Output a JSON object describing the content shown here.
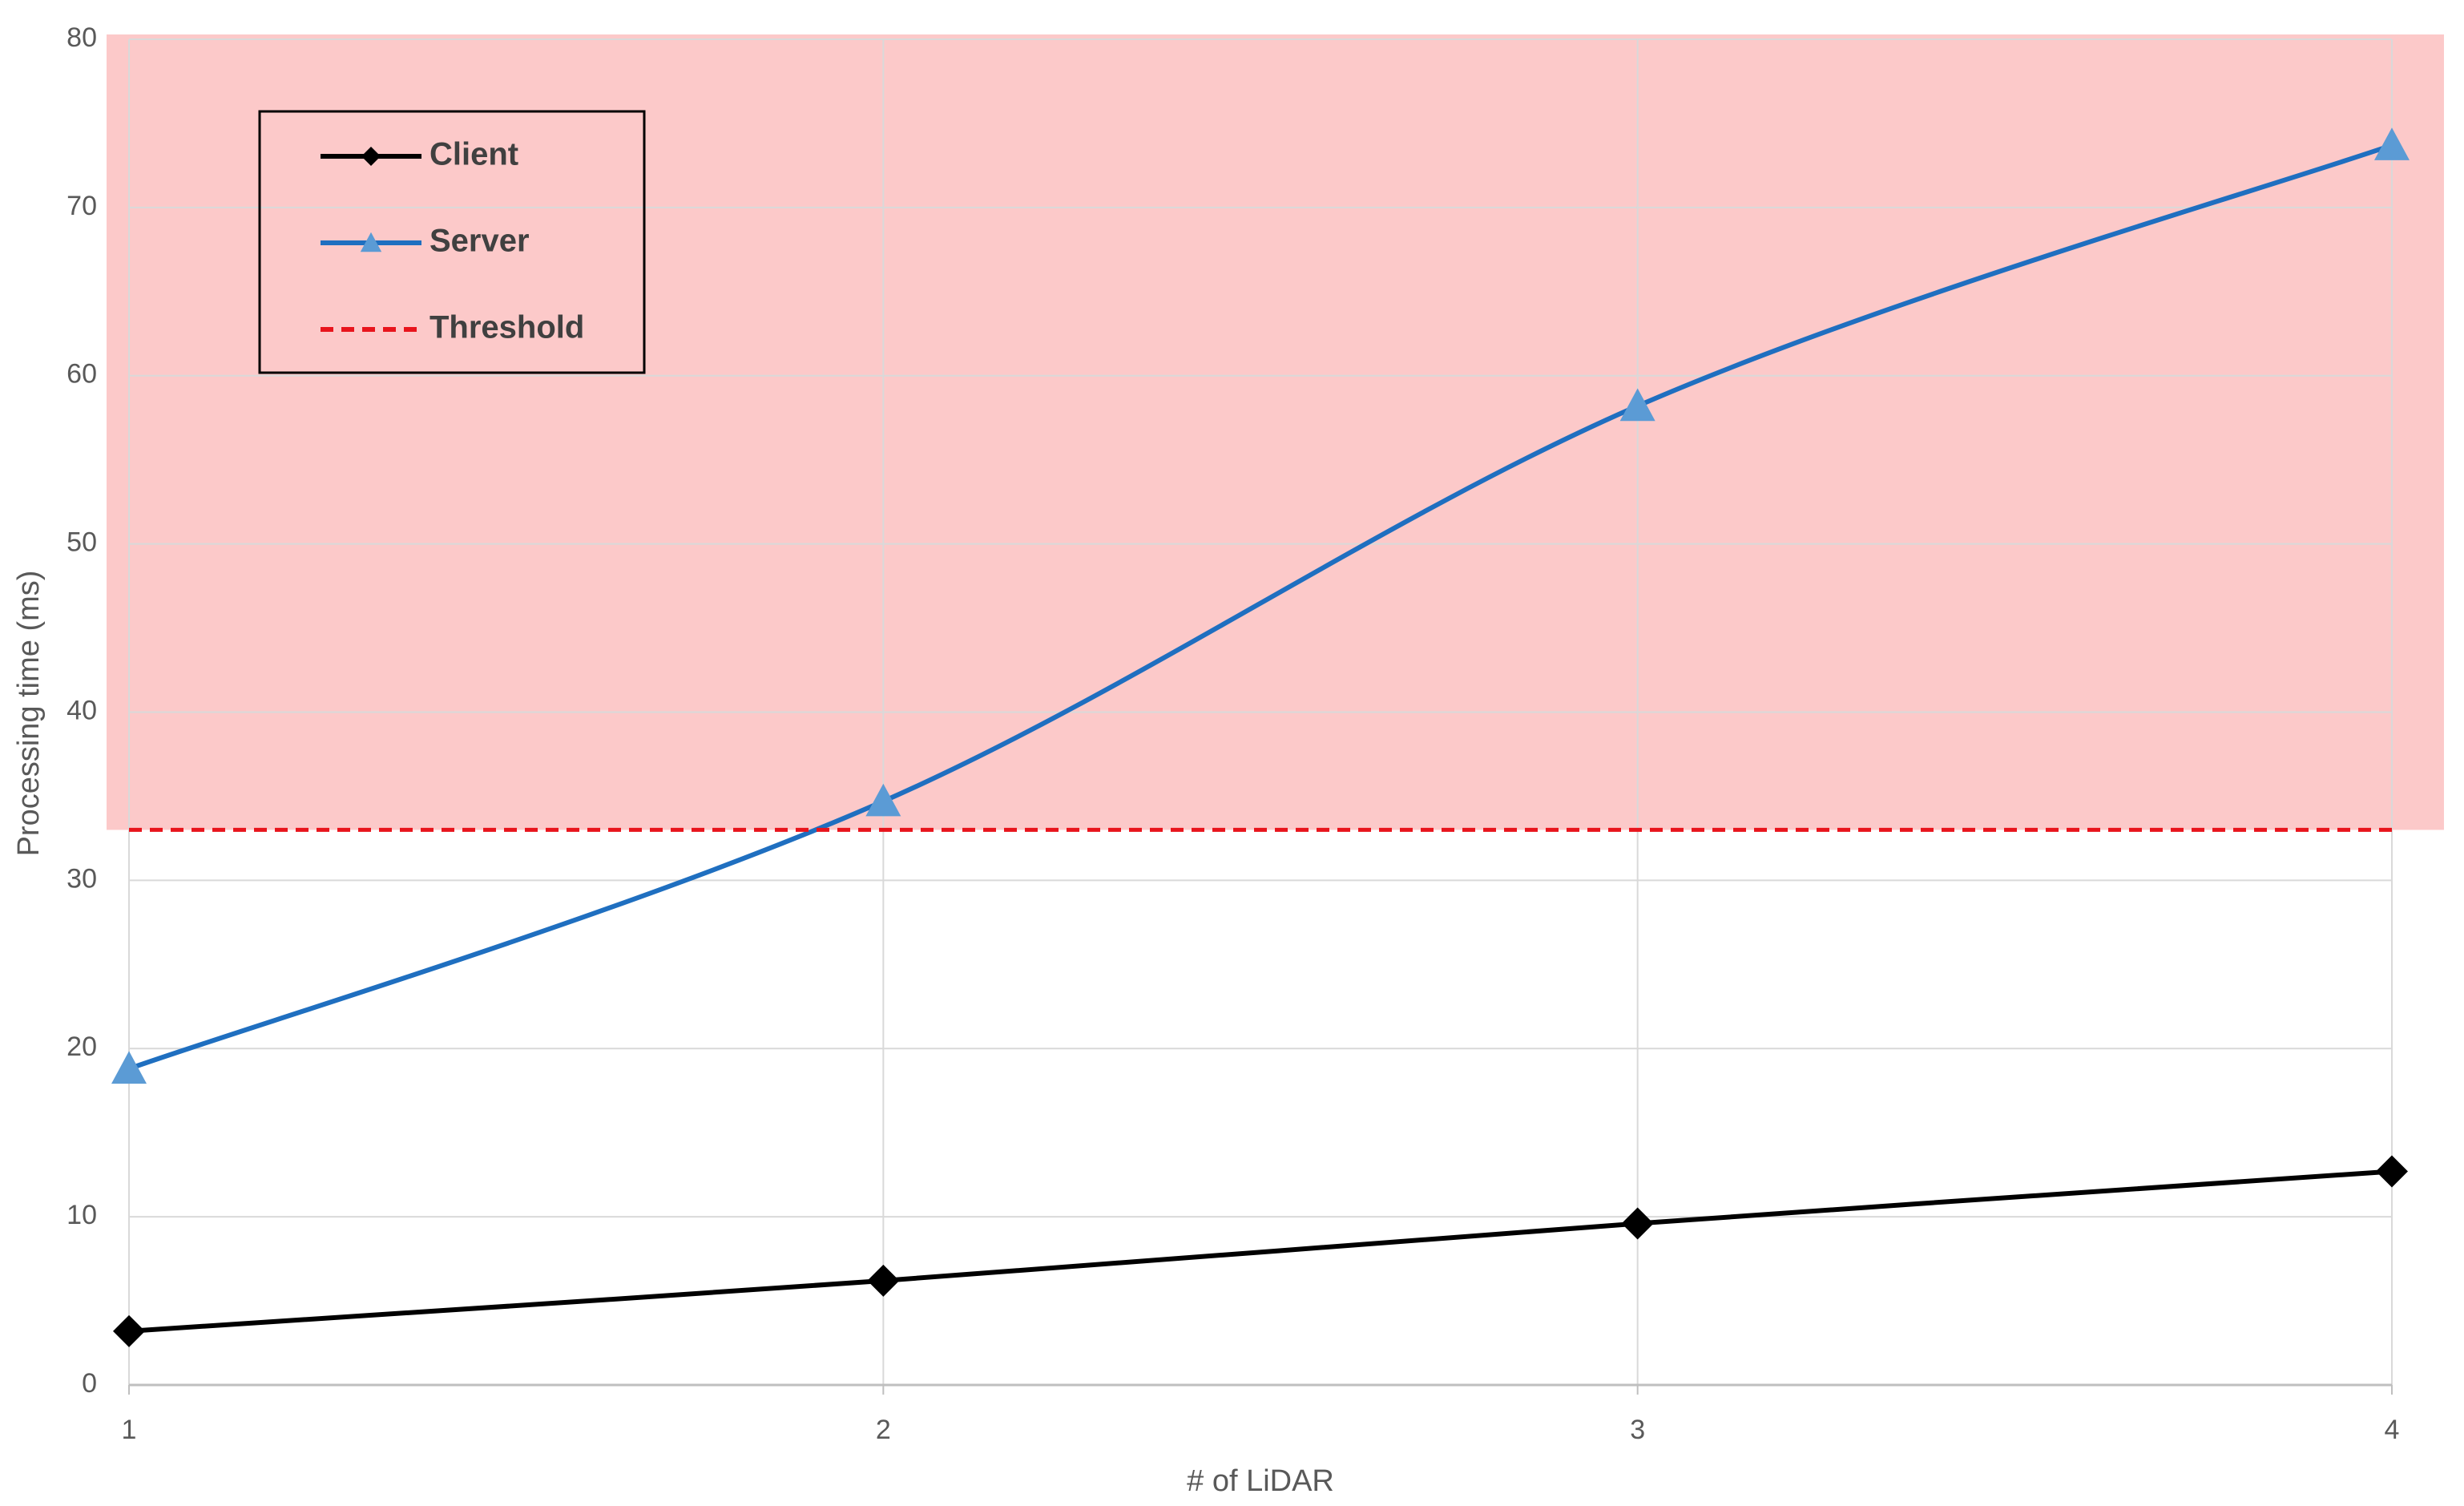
{
  "chart_data": {
    "type": "line",
    "x_label": "# of LiDAR",
    "y_label": "Processing time (ms)",
    "x": [
      1,
      2,
      3,
      4
    ],
    "series": [
      {
        "name": "Client",
        "color": "#000000",
        "marker": "diamond",
        "dash": false,
        "smooth": true,
        "values": [
          3.2,
          6.2,
          9.6,
          12.7
        ]
      },
      {
        "name": "Server",
        "color": "#1f6fc0",
        "marker_color": "#5b9bd5",
        "marker": "triangle",
        "dash": false,
        "smooth": true,
        "values": [
          18.8,
          34.7,
          58.2,
          73.7
        ]
      },
      {
        "name": "Threshold",
        "color": "#e8141c",
        "marker": "none",
        "dash": true,
        "smooth": false,
        "values": [
          33,
          33,
          33,
          33
        ]
      }
    ],
    "shade_above_series": 2,
    "shade_color": "#fcc9c9",
    "xlim": [
      1,
      4
    ],
    "xticks": [
      1,
      2,
      3,
      4
    ],
    "ylim": [
      0,
      80
    ],
    "yticks": [
      0,
      10,
      20,
      30,
      40,
      50,
      60,
      70,
      80
    ],
    "grid": true,
    "legend": "upper left"
  }
}
